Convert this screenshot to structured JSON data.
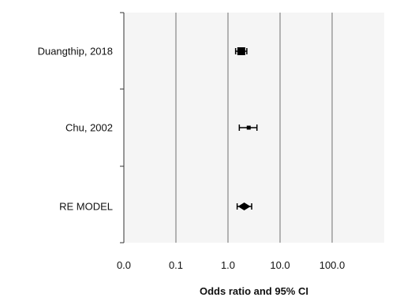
{
  "chart_data": {
    "type": "forest",
    "xlabel": "Odds ratio and 95% CI",
    "xscale": "log10",
    "xlim": [
      1,
      100000
    ],
    "x_ticks": [
      {
        "value": 1,
        "label": "0.0"
      },
      {
        "value": 10,
        "label": "0.1"
      },
      {
        "value": 100,
        "label": "1.0"
      },
      {
        "value": 1000,
        "label": "10.0"
      },
      {
        "value": 10000,
        "label": "100.0"
      }
    ],
    "grid": "vertical",
    "plot_background": "#f5f5f5",
    "gridline_color": "#6e6e6e",
    "marker_color": "#000000",
    "studies": [
      {
        "label": "Duangthip, 2018",
        "or": 180,
        "ci_low": 140,
        "ci_high": 230,
        "marker": "square"
      },
      {
        "label": "Chu, 2002",
        "or": 250,
        "ci_low": 165,
        "ci_high": 360,
        "marker": "square"
      },
      {
        "label": "RE MODEL",
        "or": 205,
        "ci_low": 150,
        "ci_high": 285,
        "marker": "diamond"
      }
    ]
  }
}
